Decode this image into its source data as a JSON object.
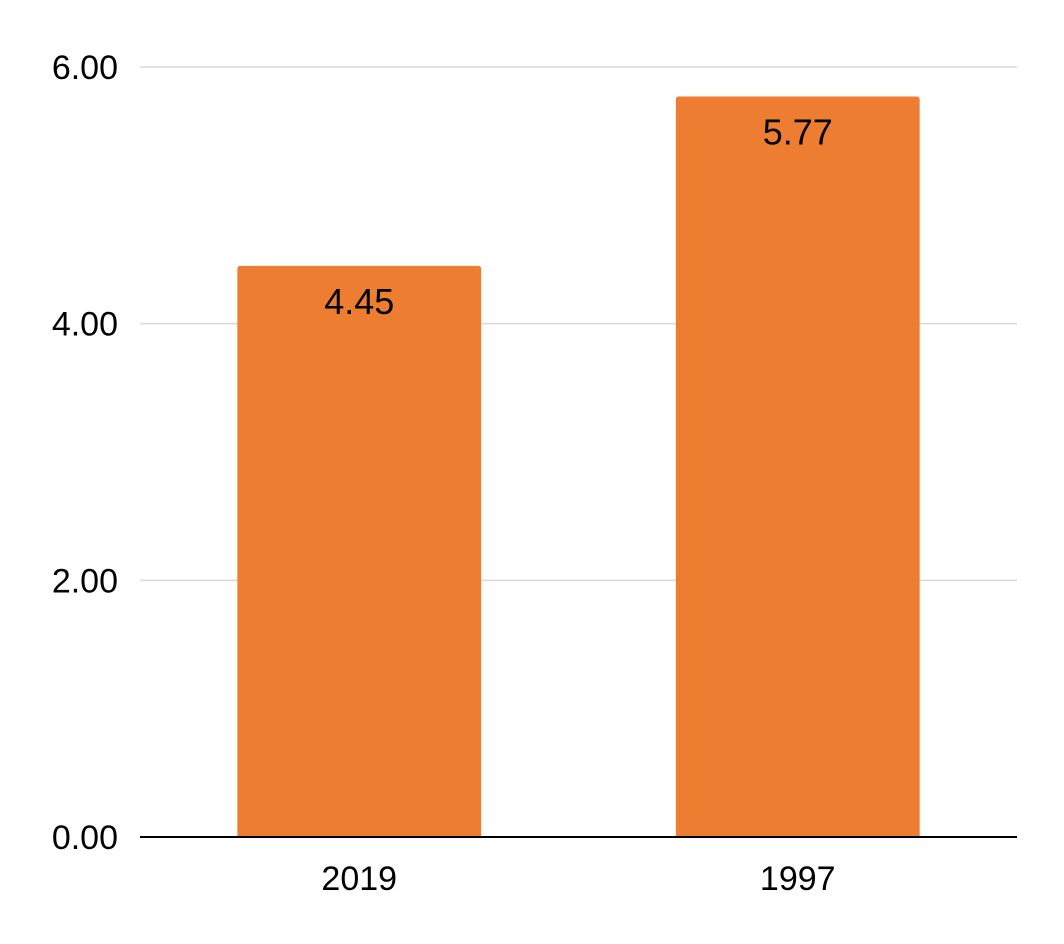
{
  "chart_data": {
    "type": "bar",
    "categories": [
      "2019",
      "1997"
    ],
    "values": [
      4.45,
      5.77
    ],
    "data_labels": [
      "4.45",
      "5.77"
    ],
    "ylim": [
      0,
      6
    ],
    "yticks": [
      0,
      2,
      4,
      6
    ],
    "ytick_labels": [
      "0.00",
      "2.00",
      "4.00",
      "6.00"
    ],
    "title": "",
    "xlabel": "",
    "ylabel": "",
    "grid": true,
    "legend": "none",
    "colors": {
      "bar": "#ED7D31",
      "grid": "#D9D9D9",
      "axis": "#000000"
    }
  }
}
